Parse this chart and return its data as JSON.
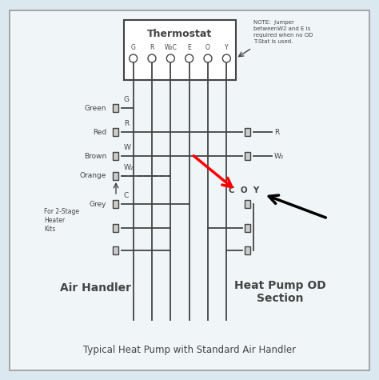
{
  "bg_color": "#dce8f0",
  "inner_bg": "#eef4f8",
  "line_color": "#444444",
  "title": "Typical Heat Pump with Standard Air Handler",
  "thermostat_label": "Thermostat",
  "note_text": "NOTE:  Jumper\nbetweenW2 and E is\nrequired when no OD\nT-Stat is used.",
  "air_handler_label": "Air Handler",
  "heat_pump_label": "Heat Pump OD\nSection",
  "for_2stage_text": "For 2-Stage\nHeater\nKits",
  "left_wire_names": [
    "Green",
    "Red",
    "Brown",
    "Orange"
  ],
  "left_wire_terms": [
    "G",
    "R",
    "W",
    "W₂"
  ],
  "right_wire_terms": [
    "R",
    "W₂"
  ],
  "coy_label": "C O Y"
}
